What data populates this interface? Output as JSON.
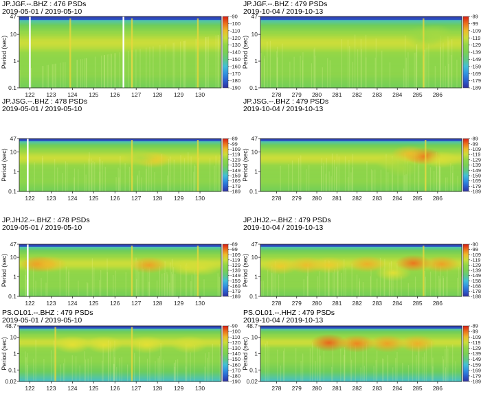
{
  "chart_data": [
    {
      "type": "heatmap",
      "title": "JP.JGF.--.BHZ : 476 PSDs",
      "subtitle": "2019-05-01 / 2019-05-10",
      "ylabel": "Period (sec)",
      "y_scale": "log",
      "ylim": [
        0.1,
        47
      ],
      "y_ticks": [
        "0.1",
        "1",
        "10",
        "47"
      ],
      "xlim": [
        121.5,
        131
      ],
      "x_ticks": [
        "122",
        "123",
        "124",
        "125",
        "126",
        "127",
        "128",
        "129",
        "130"
      ],
      "show_x_ticks": true,
      "colorbar_ticks": [
        "-90",
        "-100",
        "-110",
        "-120",
        "-130",
        "-140",
        "-150",
        "-160",
        "-170",
        "-180",
        "-190"
      ],
      "gaps": [
        122.0,
        126.4
      ],
      "spikes": [
        {
          "x": 123.9,
          "y": 6.0
        },
        {
          "x": 126.8,
          "y": 2.0
        },
        {
          "x": 129.9,
          "y": 5.0
        }
      ],
      "blobs": []
    },
    {
      "type": "heatmap",
      "title": "JP.JGF.--.BHZ : 479 PSDs",
      "subtitle": "2019-10-04 / 2019-10-13",
      "ylabel": "Period (sec)",
      "y_scale": "log",
      "ylim": [
        0.1,
        47
      ],
      "y_ticks": [
        "0.1",
        "1",
        "10",
        "47"
      ],
      "xlim": [
        277.2,
        287.2
      ],
      "x_ticks": [
        "278",
        "279",
        "280",
        "281",
        "282",
        "283",
        "284",
        "285",
        "286"
      ],
      "show_x_ticks": true,
      "colorbar_ticks": [
        "-89",
        "-99",
        "-109",
        "-119",
        "-129",
        "-139",
        "-149",
        "-159",
        "-169",
        "-179",
        "-189"
      ],
      "gaps": [],
      "spikes": [
        {
          "x": 285.3,
          "y": 4.0
        }
      ],
      "blobs": [
        {
          "x": 285.3,
          "y": 8.0,
          "v": -128
        },
        {
          "x": 285.9,
          "y": 9.0,
          "v": -126
        }
      ]
    },
    {
      "type": "heatmap",
      "title": "JP.JSG.--.BHZ : 478 PSDs",
      "subtitle": "2019-05-01 / 2019-05-10",
      "ylabel": "Period (sec)",
      "y_scale": "log",
      "ylim": [
        0.1,
        47
      ],
      "y_ticks": [
        "0.1",
        "1",
        "10",
        "47"
      ],
      "xlim": [
        121.5,
        131
      ],
      "x_ticks": [
        "122",
        "123",
        "124",
        "125",
        "126",
        "127",
        "128",
        "129",
        "130"
      ],
      "show_x_ticks": true,
      "colorbar_ticks": [
        "-89",
        "-99",
        "-109",
        "-119",
        "-129",
        "-139",
        "-149",
        "-159",
        "-169",
        "-179",
        "-189"
      ],
      "gaps": [
        121.9
      ],
      "spikes": [
        {
          "x": 126.8,
          "y": 3.0
        },
        {
          "x": 129.9,
          "y": 4.0
        }
      ],
      "blobs": [
        {
          "x": 127.8,
          "y": 4.0,
          "v": -112
        },
        {
          "x": 127.2,
          "y": 5.0,
          "v": -124
        }
      ]
    },
    {
      "type": "heatmap",
      "title": "JP.JSG.--.BHZ : 479 PSDs",
      "subtitle": "2019-10-04 / 2019-10-13",
      "ylabel": "Period (sec)",
      "y_scale": "log",
      "ylim": [
        0.1,
        47
      ],
      "y_ticks": [
        "0.1",
        "1",
        "10",
        "47"
      ],
      "xlim": [
        277.2,
        287.2
      ],
      "x_ticks": [
        "278",
        "279",
        "280",
        "281",
        "282",
        "283",
        "284",
        "285",
        "286"
      ],
      "show_x_ticks": true,
      "colorbar_ticks": [
        "-89",
        "-99",
        "-109",
        "-119",
        "-129",
        "-139",
        "-149",
        "-159",
        "-169",
        "-179",
        "-189"
      ],
      "gaps": [],
      "spikes": [
        {
          "x": 285.4,
          "y": 0.4
        }
      ],
      "blobs": [
        {
          "x": 285.3,
          "y": 6.0,
          "v": -100
        },
        {
          "x": 284.6,
          "y": 8.0,
          "v": -110
        },
        {
          "x": 286.2,
          "y": 4.0,
          "v": -118
        },
        {
          "x": 283.8,
          "y": 3.0,
          "v": -122
        },
        {
          "x": 284.2,
          "y": 1.5,
          "v": -126
        }
      ]
    },
    {
      "type": "heatmap",
      "title": "JP.JHJ2.--.BHZ : 478 PSDs",
      "subtitle": "2019-05-01 / 2019-05-10",
      "ylabel": "Period (sec)",
      "y_scale": "log",
      "ylim": [
        0.1,
        47
      ],
      "y_ticks": [
        "0.1",
        "1",
        "10",
        "47"
      ],
      "xlim": [
        121.5,
        131
      ],
      "x_ticks": [
        "122",
        "123",
        "124",
        "125",
        "126",
        "127",
        "128",
        "129",
        "130"
      ],
      "show_x_ticks": true,
      "colorbar_ticks": [
        "-89",
        "-99",
        "-109",
        "-119",
        "-129",
        "-139",
        "-149",
        "-159",
        "-169",
        "-179",
        "-189"
      ],
      "gaps": [
        121.9
      ],
      "spikes": [
        {
          "x": 126.8,
          "y": 2.0
        },
        {
          "x": 129.9,
          "y": 2.0
        }
      ],
      "blobs": [
        {
          "x": 122.4,
          "y": 4.5,
          "v": -104
        },
        {
          "x": 122.9,
          "y": 4.5,
          "v": -110
        },
        {
          "x": 127.6,
          "y": 4.0,
          "v": -106
        },
        {
          "x": 129.4,
          "y": 3.0,
          "v": -118
        },
        {
          "x": 130.1,
          "y": 3.0,
          "v": -118
        }
      ]
    },
    {
      "type": "heatmap",
      "title": "JP.JHJ2.--.BHZ : 479 PSDs",
      "subtitle": "2019-10-04 / 2019-10-13",
      "ylabel": "Period (sec)",
      "y_scale": "log",
      "ylim": [
        0.1,
        47
      ],
      "y_ticks": [
        "0.1",
        "1",
        "10",
        "47"
      ],
      "xlim": [
        277.2,
        287.2
      ],
      "x_ticks": [
        "278",
        "279",
        "280",
        "281",
        "282",
        "283",
        "284",
        "285",
        "286"
      ],
      "show_x_ticks": true,
      "colorbar_ticks": [
        "-90",
        "-99",
        "-109",
        "-119",
        "-129",
        "-139",
        "-149",
        "-158",
        "-168",
        "-178",
        "-188"
      ],
      "gaps": [],
      "spikes": [
        {
          "x": 285.3,
          "y": 0.4
        }
      ],
      "blobs": [
        {
          "x": 278.2,
          "y": 3.5,
          "v": -112
        },
        {
          "x": 279.5,
          "y": 4.0,
          "v": -110
        },
        {
          "x": 280.6,
          "y": 4.0,
          "v": -112
        },
        {
          "x": 282.5,
          "y": 4.5,
          "v": -108
        },
        {
          "x": 284.8,
          "y": 5.0,
          "v": -100
        },
        {
          "x": 286.2,
          "y": 4.5,
          "v": -106
        },
        {
          "x": 283.8,
          "y": 1.6,
          "v": -116
        }
      ]
    },
    {
      "type": "heatmap",
      "title": "PS.OL01.--.BHZ : 479 PSDs",
      "subtitle": "2019-05-01 / 2019-05-10",
      "ylabel": "Period (sec)",
      "y_scale": "log",
      "ylim": [
        0.02,
        48.7
      ],
      "y_ticks": [
        "0.02",
        "0.1",
        "1",
        "10",
        "48.7"
      ],
      "xlim": [
        121.5,
        131
      ],
      "x_ticks": [
        "122",
        "123",
        "124",
        "125",
        "126",
        "127",
        "128",
        "129",
        "130"
      ],
      "show_x_ticks": true,
      "colorbar_ticks": [
        "-90",
        "-100",
        "-110",
        "-120",
        "-130",
        "-140",
        "-150",
        "-160",
        "-170",
        "-180",
        "-190"
      ],
      "gaps": [],
      "spikes": [
        {
          "x": 123.2,
          "y": 3.0
        },
        {
          "x": 126.8,
          "y": 3.0
        }
      ],
      "blobs": [
        {
          "x": 124.0,
          "y": 3.5,
          "v": -116
        },
        {
          "x": 125.5,
          "y": 3.5,
          "v": -116
        },
        {
          "x": 127.5,
          "y": 3.5,
          "v": -116
        },
        {
          "x": 129.5,
          "y": 3.5,
          "v": -118
        }
      ]
    },
    {
      "type": "heatmap",
      "title": "PS.OL01.--.HHZ : 479 PSDs",
      "subtitle": "2019-10-04 / 2019-10-13",
      "ylabel": "Period (sec)",
      "y_scale": "log",
      "ylim": [
        0.02,
        48.7
      ],
      "y_ticks": [
        "0.02",
        "0.1",
        "1",
        "10",
        "48.7"
      ],
      "xlim": [
        277.2,
        287.2
      ],
      "x_ticks": [
        "278",
        "279",
        "280",
        "281",
        "282",
        "283",
        "284",
        "285",
        "286"
      ],
      "show_x_ticks": true,
      "colorbar_ticks": [
        "-89",
        "-99",
        "-109",
        "-119",
        "-129",
        "-139",
        "-149",
        "-159",
        "-169",
        "-179",
        "-189"
      ],
      "gaps": [],
      "spikes": [],
      "blobs": [
        {
          "x": 280.6,
          "y": 4.5,
          "v": -98
        },
        {
          "x": 282.0,
          "y": 4.0,
          "v": -102
        },
        {
          "x": 283.5,
          "y": 4.0,
          "v": -106
        },
        {
          "x": 285.0,
          "y": 4.0,
          "v": -108
        }
      ]
    }
  ]
}
